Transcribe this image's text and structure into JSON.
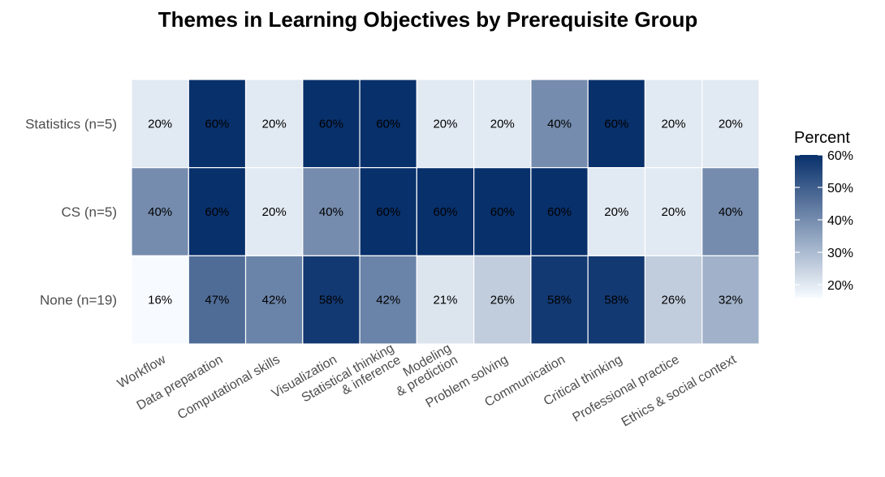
{
  "chart_data": {
    "type": "heatmap",
    "title": "Themes in Learning Objectives by Prerequisite Group",
    "xlabel": "",
    "ylabel": "",
    "rows": [
      "Statistics (n=5)",
      "CS (n=5)",
      "None (n=19)"
    ],
    "columns": [
      [
        "Workflow"
      ],
      [
        "Data preparation"
      ],
      [
        "Computational skills"
      ],
      [
        "Visualization"
      ],
      [
        "Statistical thinking",
        "& inference"
      ],
      [
        "Modeling",
        "& prediction"
      ],
      [
        "Problem solving"
      ],
      [
        "Communication"
      ],
      [
        "Critical thinking"
      ],
      [
        "Professional practice"
      ],
      [
        "Ethics & social context"
      ]
    ],
    "values": [
      [
        20,
        60,
        20,
        60,
        60,
        20,
        20,
        40,
        60,
        20,
        20
      ],
      [
        40,
        60,
        20,
        40,
        60,
        60,
        60,
        60,
        20,
        20,
        40
      ],
      [
        16,
        47,
        42,
        58,
        42,
        21,
        26,
        58,
        58,
        26,
        32
      ]
    ],
    "cell_labels": [
      [
        "20%",
        "60%",
        "20%",
        "60%",
        "60%",
        "20%",
        "20%",
        "40%",
        "60%",
        "20%",
        "20%"
      ],
      [
        "40%",
        "60%",
        "20%",
        "40%",
        "60%",
        "60%",
        "60%",
        "60%",
        "20%",
        "20%",
        "40%"
      ],
      [
        "16%",
        "47%",
        "42%",
        "58%",
        "42%",
        "21%",
        "26%",
        "58%",
        "58%",
        "26%",
        "32%"
      ]
    ],
    "legend": {
      "title": "Percent",
      "position": "right",
      "ticks": [
        60,
        50,
        40,
        30,
        20
      ],
      "tick_labels": [
        "60%",
        "50%",
        "40%",
        "30%",
        "20%"
      ],
      "range": [
        16,
        60
      ],
      "color_low": "#f7fbff",
      "color_high": "#08306b"
    },
    "grid": false
  }
}
